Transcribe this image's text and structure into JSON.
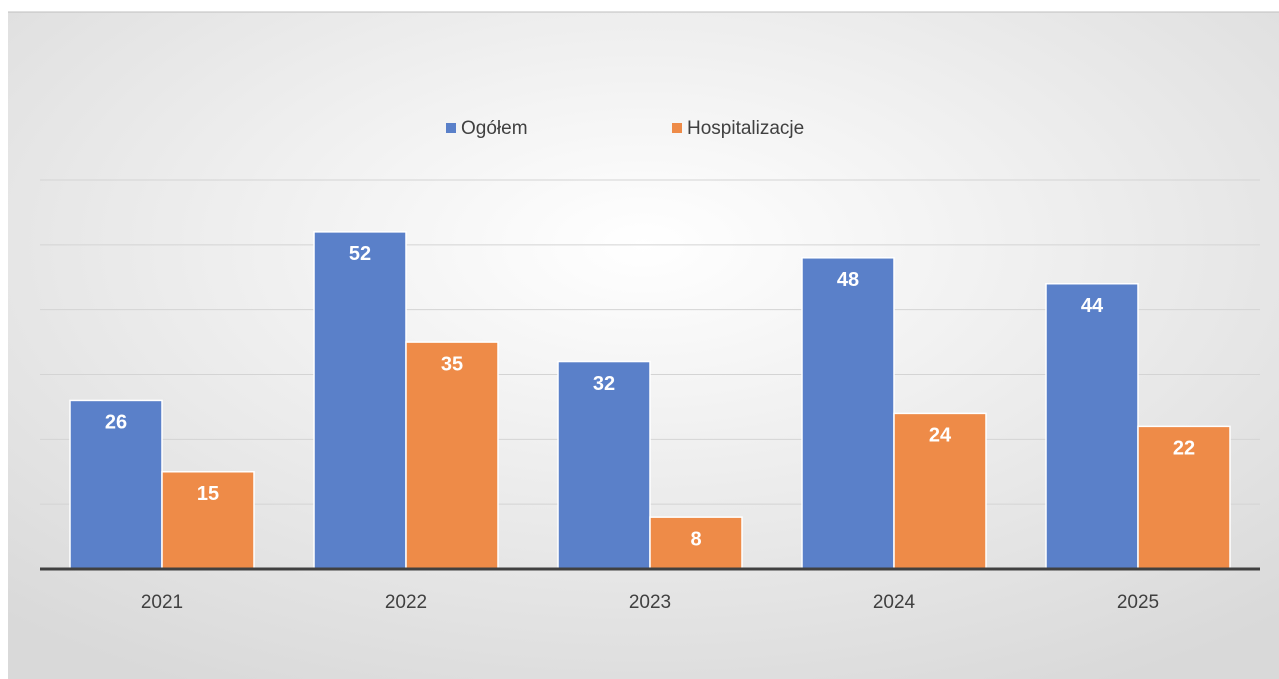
{
  "chart_data": {
    "type": "bar",
    "categories": [
      "2021",
      "2022",
      "2023",
      "2024",
      "2025"
    ],
    "series": [
      {
        "name": "Ogółem",
        "color": "#5a80c9",
        "values": [
          26,
          52,
          32,
          48,
          44
        ]
      },
      {
        "name": "Hospitalizacje",
        "color": "#ee8b48",
        "values": [
          15,
          35,
          8,
          24,
          22
        ]
      }
    ],
    "ylim": [
      0,
      60
    ],
    "yticks": [
      0,
      10,
      20,
      30,
      40,
      50,
      60
    ],
    "grid": true,
    "legend": "top"
  }
}
